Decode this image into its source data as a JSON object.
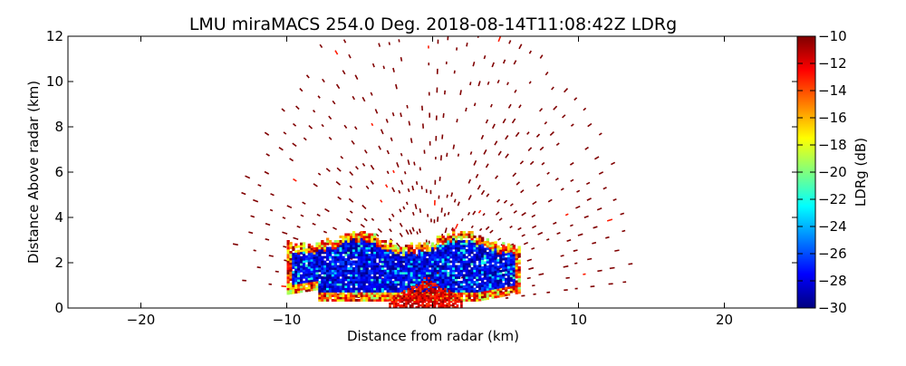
{
  "chart_data": {
    "type": "heatmap",
    "title": "LMU miraMACS 254.0 Deg. 2018-08-14T11:08:42Z  LDRg",
    "xlabel": "Distance from radar (km)",
    "ylabel": "Distance Above radar  (km)",
    "xlim": [
      -25,
      25
    ],
    "ylim": [
      0,
      12
    ],
    "xticks": [
      -20,
      -10,
      0,
      10,
      20
    ],
    "yticks": [
      0,
      2,
      4,
      6,
      8,
      10,
      12
    ],
    "colorbar": {
      "label": "LDRg (dB)",
      "range": [
        -30,
        -10
      ],
      "ticks": [
        -10,
        -12,
        -14,
        -16,
        -18,
        -20,
        -22,
        -24,
        -26,
        -28,
        -30
      ],
      "colormap": "jet"
    },
    "regions": [
      {
        "name": "low cloud layer",
        "x_range": [
          -10,
          6
        ],
        "y_range": [
          0.3,
          3.3
        ],
        "dominant_value_db": -28,
        "edge_values_db": [
          -10,
          -20
        ]
      },
      {
        "name": "near-radar echo",
        "x_range": [
          -3,
          2
        ],
        "y_range": [
          0,
          1.2
        ],
        "dominant_value_db": -10
      },
      {
        "name": "sparse clutter",
        "x_range": [
          -14,
          14
        ],
        "y_range": [
          0.5,
          12
        ],
        "dominant_value_db": -10
      }
    ]
  },
  "colors": {
    "jet_stops": [
      "#00007f",
      "#0000ff",
      "#007fff",
      "#00ffff",
      "#7fff7f",
      "#ffff00",
      "#ff7f00",
      "#ff0000",
      "#7f0000"
    ],
    "background": "#ffffff",
    "axis": "#000000"
  }
}
